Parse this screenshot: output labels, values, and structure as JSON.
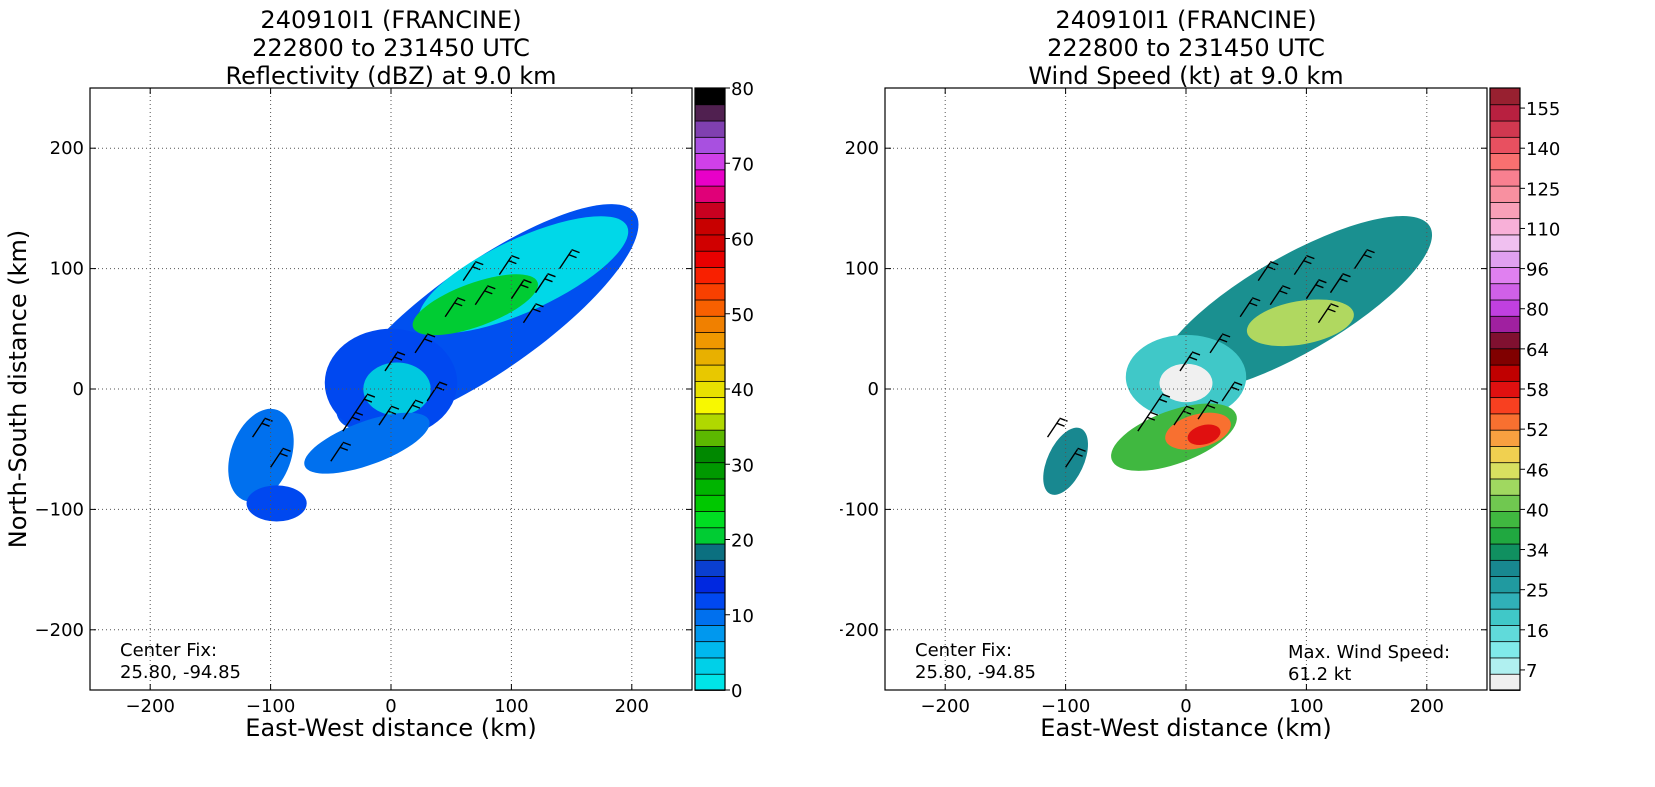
{
  "chart_data": [
    {
      "type": "heatmap",
      "title": [
        "240910I1 (FRANCINE)",
        "222800 to 231450 UTC",
        "Reflectivity (dBZ) at 9.0 km"
      ],
      "xlabel": "East-West distance (km)",
      "ylabel": "North-South distance (km)",
      "xlim": [
        -250,
        250
      ],
      "ylim": [
        -250,
        250
      ],
      "xticks": [
        -200,
        -100,
        0,
        100,
        200
      ],
      "yticks": [
        -200,
        -100,
        0,
        100,
        200
      ],
      "grid": true,
      "colorbar": {
        "min": 0,
        "max": 80,
        "ticks": [
          0,
          10,
          20,
          30,
          40,
          50,
          60,
          70,
          80
        ],
        "colors": [
          "#00e5e8",
          "#00d0e8",
          "#00b8ee",
          "#0098ee",
          "#0070ee",
          "#0048f0",
          "#0028e0",
          "#0a3fd0",
          "#0b7080",
          "#00cc33",
          "#00dd22",
          "#00c800",
          "#00b400",
          "#009900",
          "#008800",
          "#5cb800",
          "#b0d800",
          "#f8f800",
          "#e8e000",
          "#e8c800",
          "#e8b000",
          "#f09800",
          "#f08000",
          "#f86000",
          "#f84000",
          "#f82000",
          "#e80000",
          "#d00000",
          "#c80000",
          "#c80020",
          "#e00078",
          "#e800c8",
          "#d040e8",
          "#a850e0",
          "#8040b0",
          "#502050",
          "#000000"
        ]
      },
      "annotations": [
        "Center Fix:",
        "25.80, -94.85"
      ]
    },
    {
      "type": "heatmap",
      "title": [
        "240910I1 (FRANCINE)",
        "222800 to 231450 UTC",
        "Wind Speed (kt) at 9.0 km"
      ],
      "xlabel": "East-West distance (km)",
      "ylabel": "North-South distance (km)",
      "xlim": [
        -250,
        250
      ],
      "ylim": [
        -250,
        250
      ],
      "xticks": [
        -200,
        -100,
        0,
        100,
        200
      ],
      "yticks": [
        -200,
        -100,
        0,
        100,
        200
      ],
      "grid": true,
      "colorbar": {
        "ticks": [
          "7",
          "16",
          "25",
          "34",
          "40",
          "46",
          "52",
          "58",
          "64",
          "80",
          "96",
          "110",
          "125",
          "140",
          "155"
        ],
        "colors": [
          "#f0f0f0",
          "#b0f0f0",
          "#80eaea",
          "#60dada",
          "#40c8c8",
          "#30b0b8",
          "#209aa0",
          "#188890",
          "#109060",
          "#20a840",
          "#40b840",
          "#70c850",
          "#a0d860",
          "#d8e060",
          "#f0d050",
          "#f8a040",
          "#f87030",
          "#f84020",
          "#e01010",
          "#c00000",
          "#800000",
          "#801030",
          "#a020a0",
          "#c040e0",
          "#d060e8",
          "#e080f0",
          "#e0a0f0",
          "#f0c0f0",
          "#f8b0d8",
          "#f8a0b8",
          "#f890a0",
          "#f88090",
          "#f87070",
          "#e85060",
          "#d03850",
          "#b82040",
          "#982030"
        ]
      },
      "annotations": [
        "Center Fix:",
        "25.80, -94.85",
        "Max. Wind Speed:",
        "61.2 kt"
      ]
    }
  ]
}
